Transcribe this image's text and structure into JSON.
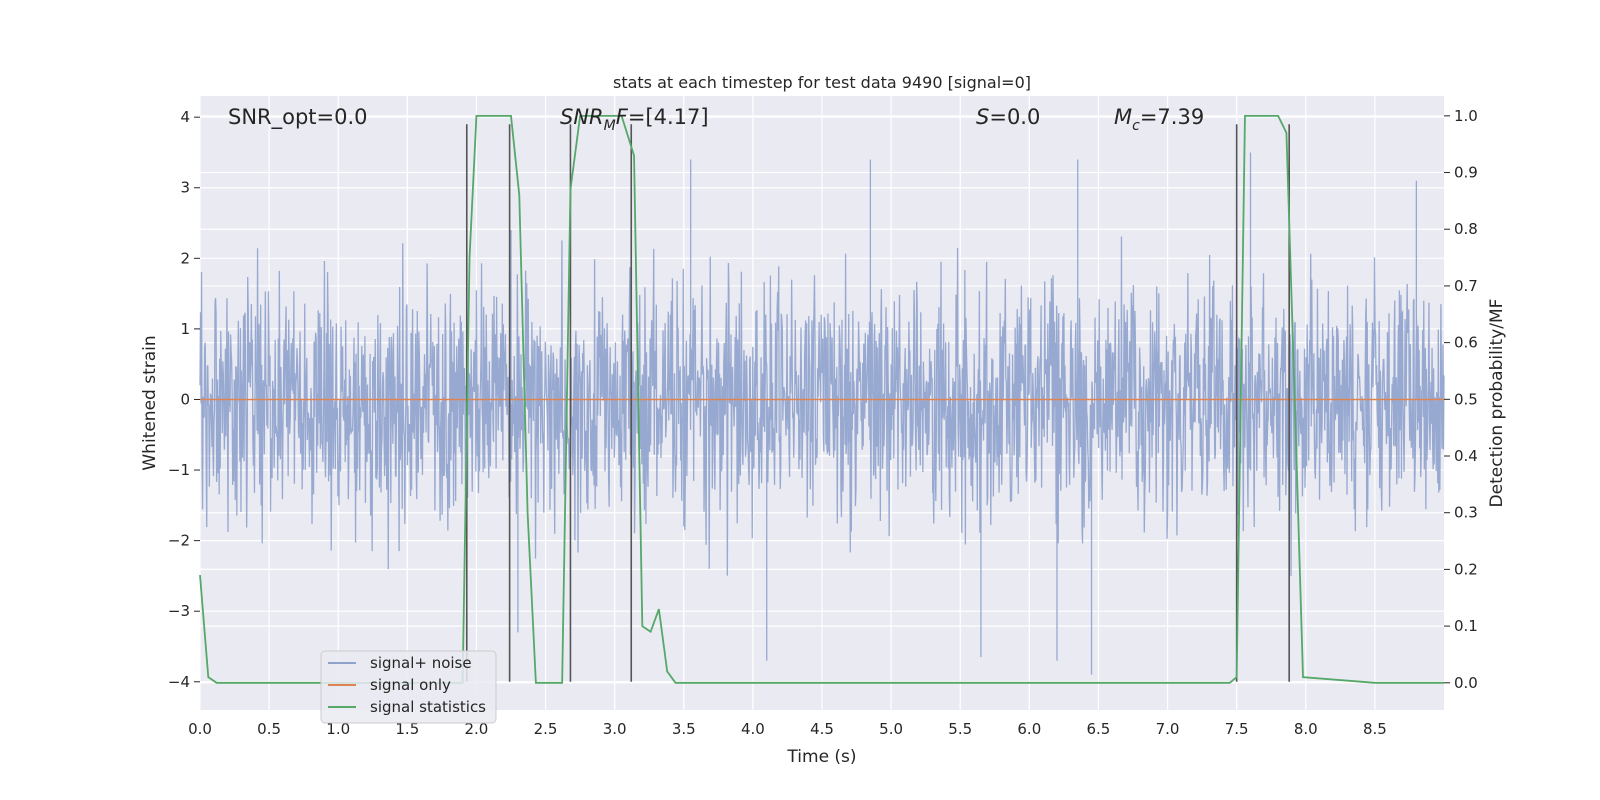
{
  "chart_data": {
    "type": "line",
    "title": "stats at each timestep for test data 9490 [signal=0]",
    "xlabel": "Time (s)",
    "ylabel_left": "Whitened strain",
    "ylabel_right": "Detection probability/MF",
    "xlim": [
      0.0,
      9.0
    ],
    "ylim_left": [
      -4.4,
      4.3
    ],
    "ylim_right": [
      -0.048,
      1.035
    ],
    "x_ticks": [
      "0.0",
      "0.5",
      "1.0",
      "1.5",
      "2.0",
      "2.5",
      "3.0",
      "3.5",
      "4.0",
      "4.5",
      "5.0",
      "5.5",
      "6.0",
      "6.5",
      "7.0",
      "7.5",
      "8.0",
      "8.5"
    ],
    "y_left_ticks": [
      "−4",
      "−3",
      "−2",
      "−1",
      "0",
      "1",
      "2",
      "3",
      "4"
    ],
    "y_right_ticks": [
      "0.0",
      "0.1",
      "0.2",
      "0.3",
      "0.4",
      "0.5",
      "0.6",
      "0.7",
      "0.8",
      "0.9",
      "1.0"
    ],
    "grid": true,
    "legend_position": "lower-left",
    "annotations": [
      {
        "text": "SNR_opt=0.0",
        "x": 0.2,
        "y": 3.9
      },
      {
        "text": "SNR_MF=[4.17]",
        "x": 2.6,
        "y": 3.9
      },
      {
        "text": "S=0.0",
        "x": 5.6,
        "y": 3.9
      },
      {
        "text": "M_c=7.39",
        "x": 6.6,
        "y": 3.9
      }
    ],
    "annotation_display": {
      "snr_opt": "SNR_opt=0.0",
      "snr_mf_prefix": "SNR",
      "snr_mf_sub": "M",
      "snr_mf_mid": "F",
      "snr_mf_suffix": "=[4.17]",
      "s_var": "S",
      "s_suffix": "=0.0",
      "mc_var": "M",
      "mc_sub": "c",
      "mc_suffix": "=7.39"
    },
    "series": [
      {
        "name": "signal+ noise",
        "color": "#8ea2cc",
        "axis": "left",
        "envelope": {
          "typical_abs": 1.9,
          "max_abs": 4.0
        },
        "notable_peaks": [
          [
            1.93,
            2.9
          ],
          [
            2.25,
            2.4
          ],
          [
            2.3,
            -3.3
          ],
          [
            3.12,
            3.3
          ],
          [
            3.55,
            3.4
          ],
          [
            4.1,
            -3.7
          ],
          [
            4.85,
            3.4
          ],
          [
            5.65,
            -3.65
          ],
          [
            6.2,
            -3.7
          ],
          [
            6.35,
            3.4
          ],
          [
            6.45,
            -3.9
          ],
          [
            7.6,
            3.5
          ],
          [
            8.8,
            3.1
          ]
        ]
      },
      {
        "name": "signal only",
        "color": "#dd8452",
        "axis": "left",
        "x": [
          0.0,
          9.0
        ],
        "y": [
          0.0,
          0.0
        ]
      },
      {
        "name": "signal statistics",
        "color": "#55a868",
        "axis": "right",
        "x": [
          0.0,
          0.06,
          0.12,
          0.5,
          1.0,
          1.5,
          1.9,
          1.95,
          2.0,
          2.25,
          2.31,
          2.37,
          2.43,
          2.5,
          2.62,
          2.68,
          2.75,
          2.9,
          3.05,
          3.14,
          3.2,
          3.26,
          3.32,
          3.38,
          3.44,
          3.5,
          4.0,
          5.0,
          6.0,
          7.0,
          7.45,
          7.5,
          7.56,
          7.8,
          7.86,
          7.92,
          7.98,
          8.5,
          9.0
        ],
        "y": [
          0.19,
          0.01,
          0.0,
          0.0,
          0.0,
          0.0,
          0.0,
          0.75,
          1.0,
          1.0,
          0.86,
          0.3,
          0.0,
          0.0,
          0.0,
          0.87,
          1.0,
          1.0,
          1.0,
          0.93,
          0.1,
          0.09,
          0.13,
          0.02,
          0.0,
          0.0,
          0.0,
          0.0,
          0.0,
          0.0,
          0.0,
          0.01,
          1.0,
          1.0,
          0.97,
          0.5,
          0.01,
          0.0,
          0.0
        ]
      }
    ],
    "vertical_lines": {
      "color": "#555555",
      "x": [
        1.93,
        2.24,
        2.68,
        3.12,
        7.5,
        7.88
      ],
      "y_range_left": [
        -4.0,
        3.9
      ]
    },
    "colors": {
      "background": "#eaeaf2",
      "grid": "#ffffff",
      "text": "#262626"
    }
  }
}
